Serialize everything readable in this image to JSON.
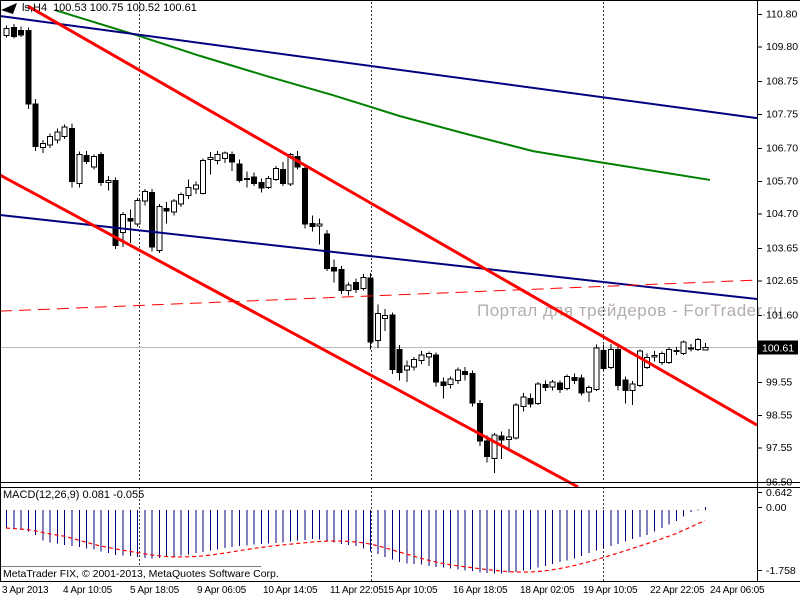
{
  "header": {
    "symbol": "ls,H4",
    "ohlc": "100.53 100.75 100.52 100.61"
  },
  "watermark": "Портал для трейдеров - ForTrader.ru",
  "copyright": "MetaTrader FIX, © 2001-2013, MetaQuotes Software Corp.",
  "indicator": {
    "label_full": "MACD(12,26,9) 0.081 -0.055"
  },
  "price_axis": {
    "labels": [
      "110.80",
      "109.80",
      "108.75",
      "107.75",
      "106.70",
      "105.70",
      "104.70",
      "103.65",
      "102.65",
      "101.60",
      "99.55",
      "98.55",
      "97.55",
      "96.50"
    ],
    "current": "100.61"
  },
  "time_axis": {
    "labels": [
      "3 Apr 2013",
      "4 Apr 10:05",
      "5 Apr 18:05",
      "9 Apr 06:05",
      "10 Apr 14:05",
      "11 Apr 22:05",
      "15 Apr 10:05",
      "16 Apr 18:05",
      "18 Apr 02:05",
      "19 Apr 10:05",
      "22 Apr 22:05",
      "24 Apr 06:05"
    ]
  },
  "macd_axis": {
    "labels": [
      "0.642",
      "0.00",
      "-1.758"
    ]
  },
  "colors": {
    "bull_fill": "#ffffff",
    "bear_fill": "#000000",
    "outline": "#000000",
    "ma_green": "#008000",
    "trend_navy": "#000080",
    "trend_red": "#ff0000",
    "signal_red": "#ff0000",
    "hist_navy": "#000080",
    "current_price_line": "#b8b8b8",
    "grid": "#3c3c3c",
    "watermark": "#b5adab"
  },
  "chart_data": {
    "type": "candlestick",
    "title": "ls,H4  100.53 100.75 100.52 100.61",
    "timeframe": "H4",
    "ylim": [
      96.38,
      110.86
    ],
    "current_price": 100.61,
    "last_candle": {
      "open": 100.53,
      "high": 100.75,
      "low": 100.52,
      "close": 100.61
    },
    "candles": [
      [
        110.15,
        110.45,
        110.08,
        110.35
      ],
      [
        110.38,
        110.5,
        110.05,
        110.12
      ],
      [
        110.3,
        110.42,
        110.1,
        110.16
      ],
      [
        110.3,
        110.38,
        107.9,
        108.05
      ],
      [
        108.05,
        108.2,
        106.62,
        106.75
      ],
      [
        106.72,
        106.95,
        106.55,
        106.85
      ],
      [
        106.8,
        107.15,
        106.7,
        107.05
      ],
      [
        106.95,
        107.3,
        106.85,
        107.2
      ],
      [
        107.05,
        107.42,
        106.98,
        107.35
      ],
      [
        107.3,
        107.45,
        105.5,
        105.68
      ],
      [
        105.62,
        106.6,
        105.5,
        106.5
      ],
      [
        106.48,
        106.62,
        106.22,
        106.3
      ],
      [
        106.12,
        106.5,
        106.05,
        106.45
      ],
      [
        106.5,
        106.58,
        105.55,
        105.65
      ],
      [
        105.65,
        105.85,
        105.4,
        105.72
      ],
      [
        105.72,
        105.8,
        103.62,
        103.72
      ],
      [
        104.12,
        104.75,
        103.68,
        104.68
      ],
      [
        104.55,
        104.82,
        103.8,
        104.48
      ],
      [
        104.38,
        105.18,
        104.3,
        105.1
      ],
      [
        105.08,
        105.45,
        104.95,
        105.38
      ],
      [
        105.35,
        105.45,
        103.55,
        103.68
      ],
      [
        103.58,
        105.0,
        103.5,
        104.92
      ],
      [
        104.85,
        105.05,
        104.4,
        104.78
      ],
      [
        104.75,
        105.15,
        104.65,
        105.08
      ],
      [
        105.0,
        105.35,
        104.9,
        105.28
      ],
      [
        105.25,
        105.75,
        105.15,
        105.5
      ],
      [
        105.45,
        105.68,
        105.3,
        105.58
      ],
      [
        105.32,
        106.38,
        105.28,
        106.32
      ],
      [
        106.35,
        106.58,
        105.9,
        106.42
      ],
      [
        106.32,
        106.62,
        106.2,
        106.5
      ],
      [
        106.38,
        106.6,
        106.25,
        106.55
      ],
      [
        106.5,
        106.6,
        106.0,
        106.28
      ],
      [
        106.22,
        106.35,
        105.65,
        105.72
      ],
      [
        105.75,
        105.98,
        105.5,
        105.78
      ],
      [
        105.82,
        105.95,
        105.55,
        105.62
      ],
      [
        105.65,
        105.78,
        105.35,
        105.48
      ],
      [
        105.5,
        105.85,
        105.45,
        105.78
      ],
      [
        105.75,
        106.15,
        105.7,
        106.08
      ],
      [
        106.05,
        106.28,
        105.55,
        105.62
      ],
      [
        105.6,
        106.55,
        105.55,
        106.5
      ],
      [
        106.45,
        106.62,
        106.05,
        106.12
      ],
      [
        106.08,
        106.15,
        104.25,
        104.38
      ],
      [
        104.4,
        104.65,
        104.15,
        104.3
      ],
      [
        104.32,
        104.55,
        103.75,
        104.38
      ],
      [
        104.08,
        104.2,
        102.95,
        103.02
      ],
      [
        103.05,
        103.3,
        102.6,
        102.95
      ],
      [
        103.0,
        103.1,
        102.25,
        102.35
      ],
      [
        102.35,
        102.6,
        102.2,
        102.52
      ],
      [
        102.6,
        102.72,
        102.28,
        102.38
      ],
      [
        102.42,
        102.85,
        102.35,
        102.75
      ],
      [
        102.73,
        102.88,
        100.55,
        100.78
      ],
      [
        100.82,
        101.92,
        100.6,
        101.65
      ],
      [
        101.5,
        101.78,
        101.12,
        101.58
      ],
      [
        101.6,
        101.68,
        99.8,
        99.93
      ],
      [
        100.55,
        100.68,
        99.6,
        99.85
      ],
      [
        99.92,
        100.22,
        99.55,
        100.05
      ],
      [
        100.02,
        100.32,
        99.9,
        100.25
      ],
      [
        100.22,
        100.5,
        100.1,
        100.38
      ],
      [
        100.32,
        100.48,
        100.05,
        100.42
      ],
      [
        100.38,
        100.45,
        99.42,
        99.55
      ],
      [
        99.55,
        99.7,
        99.05,
        99.45
      ],
      [
        99.48,
        99.72,
        99.35,
        99.65
      ],
      [
        99.6,
        100.0,
        99.5,
        99.92
      ],
      [
        99.88,
        100.02,
        99.6,
        99.78
      ],
      [
        99.82,
        99.9,
        98.8,
        98.92
      ],
      [
        98.9,
        99.0,
        97.6,
        97.75
      ],
      [
        97.75,
        97.92,
        97.1,
        97.28
      ],
      [
        97.22,
        98.0,
        96.77,
        97.93
      ],
      [
        97.9,
        98.05,
        97.2,
        97.78
      ],
      [
        97.8,
        98.12,
        97.5,
        97.88
      ],
      [
        97.85,
        98.92,
        97.8,
        98.85
      ],
      [
        98.8,
        99.22,
        98.65,
        99.1
      ],
      [
        99.05,
        99.2,
        98.78,
        98.88
      ],
      [
        98.9,
        99.55,
        98.85,
        99.5
      ],
      [
        99.48,
        99.6,
        99.28,
        99.38
      ],
      [
        99.4,
        99.62,
        99.3,
        99.55
      ],
      [
        99.52,
        99.6,
        99.22,
        99.32
      ],
      [
        99.35,
        99.78,
        99.3,
        99.72
      ],
      [
        99.7,
        99.82,
        99.5,
        99.6
      ],
      [
        99.68,
        99.78,
        99.15,
        99.22
      ],
      [
        99.25,
        99.45,
        98.95,
        99.38
      ],
      [
        99.32,
        100.7,
        99.28,
        100.6
      ],
      [
        100.52,
        100.7,
        99.9,
        99.97
      ],
      [
        100.0,
        100.72,
        99.95,
        100.55
      ],
      [
        100.55,
        100.65,
        99.3,
        99.45
      ],
      [
        99.62,
        99.72,
        98.9,
        99.3
      ],
      [
        99.3,
        99.58,
        98.85,
        99.5
      ],
      [
        99.45,
        100.55,
        99.4,
        100.5
      ],
      [
        100.0,
        100.42,
        99.95,
        100.3
      ],
      [
        100.35,
        100.5,
        100.18,
        100.36
      ],
      [
        100.15,
        100.48,
        100.08,
        100.42
      ],
      [
        100.15,
        100.62,
        100.1,
        100.55
      ],
      [
        100.5,
        100.62,
        100.38,
        100.52
      ],
      [
        100.42,
        100.82,
        100.38,
        100.78
      ],
      [
        100.6,
        100.72,
        100.48,
        100.6
      ],
      [
        100.55,
        100.9,
        100.5,
        100.85
      ],
      [
        100.53,
        100.75,
        100.52,
        100.61
      ]
    ],
    "overlays": {
      "ma_green_points": [
        [
          55,
          110.92
        ],
        [
          139,
          110.13
        ],
        [
          200,
          109.52
        ],
        [
          267,
          108.9
        ],
        [
          333,
          108.32
        ],
        [
          400,
          107.68
        ],
        [
          467,
          107.13
        ],
        [
          533,
          106.61
        ],
        [
          600,
          106.27
        ],
        [
          655,
          106.0
        ],
        [
          710,
          105.73
        ]
      ],
      "trendlines": [
        {
          "name": "navy-upper",
          "color": "#000080",
          "width": 2,
          "dash": null,
          "p1": [
            0,
            110.74
          ],
          "p2": [
            757,
            107.62
          ]
        },
        {
          "name": "navy-lower",
          "color": "#000080",
          "width": 2,
          "dash": null,
          "p1": [
            0,
            104.66
          ],
          "p2": [
            757,
            102.09
          ]
        },
        {
          "name": "red-upper",
          "color": "#ff0000",
          "width": 3,
          "dash": null,
          "p1": [
            28,
            111.04
          ],
          "p2": [
            757,
            98.24
          ]
        },
        {
          "name": "red-lower",
          "color": "#ff0000",
          "width": 3,
          "dash": null,
          "p1": [
            0,
            105.88
          ],
          "p2": [
            578,
            96.35
          ]
        },
        {
          "name": "red-dashed",
          "color": "#ff0000",
          "width": 1,
          "dash": "12,7",
          "p1": [
            0,
            101.72
          ],
          "p2": [
            757,
            102.67
          ]
        }
      ]
    },
    "macd": {
      "params": "12,26,9",
      "last_macd": 0.081,
      "last_signal": -0.055,
      "ylim": [
        0.75,
        -1.95
      ],
      "histogram": [
        -0.5,
        -0.53,
        -0.56,
        -0.6,
        -0.7,
        -0.85,
        -0.9,
        -0.93,
        -0.97,
        -1.0,
        -1.03,
        -1.07,
        -1.1,
        -1.15,
        -1.2,
        -1.25,
        -1.27,
        -1.28,
        -1.3,
        -1.33,
        -1.35,
        -1.33,
        -1.31,
        -1.3,
        -1.27,
        -1.23,
        -1.2,
        -1.16,
        -1.13,
        -1.1,
        -1.06,
        -1.03,
        -1.0,
        -0.98,
        -0.96,
        -0.95,
        -0.93,
        -0.92,
        -0.9,
        -0.88,
        -0.85,
        -0.83,
        -0.8,
        -0.82,
        -0.85,
        -0.9,
        -0.95,
        -0.97,
        -1.0,
        -1.07,
        -1.15,
        -1.22,
        -1.3,
        -1.38,
        -1.45,
        -1.48,
        -1.5,
        -1.52,
        -1.55,
        -1.58,
        -1.6,
        -1.63,
        -1.65,
        -1.68,
        -1.7,
        -1.73,
        -1.75,
        -1.76,
        -1.76,
        -1.74,
        -1.72,
        -1.68,
        -1.65,
        -1.6,
        -1.55,
        -1.5,
        -1.45,
        -1.4,
        -1.35,
        -1.28,
        -1.2,
        -1.12,
        -1.05,
        -1.0,
        -0.95,
        -0.88,
        -0.8,
        -0.75,
        -0.7,
        -0.6,
        -0.5,
        -0.4,
        -0.3,
        -0.18,
        -0.05,
        0.02,
        0.081
      ]
    }
  }
}
